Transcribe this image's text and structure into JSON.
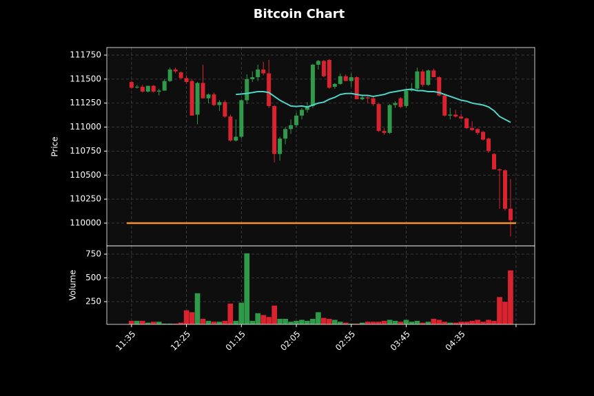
{
  "chart_data": {
    "type": "candlestick",
    "title": "Bitcoin Chart",
    "ylabel": "Price",
    "y2label": "Volume",
    "up_color": "#2e9a4a",
    "down_color": "#d9232f",
    "ma_color": "#4fd6c8",
    "hline": 110000,
    "hline_color": "#f7932e",
    "grid": true,
    "open": [
      111470,
      111420,
      111420,
      111370,
      111430,
      111370,
      111380,
      111480,
      111600,
      111570,
      111510,
      111480,
      111130,
      111460,
      111300,
      111340,
      111230,
      111260,
      111110,
      110860,
      110900,
      111280,
      111500,
      111520,
      111600,
      111560,
      111220,
      110720,
      110880,
      110980,
      111020,
      111120,
      111180,
      111220,
      111650,
      111690,
      111700,
      111420,
      111450,
      111530,
      111480,
      111520,
      111290,
      111310,
      111300,
      111240,
      110960,
      110940,
      111230,
      111300,
      111220,
      111380,
      111400,
      111580,
      111440,
      111590,
      111520,
      111330,
      111120,
      111130,
      111110,
      111090,
      110990,
      110980,
      110950,
      110880,
      110720,
      110560,
      110550,
      110150
    ],
    "high": [
      111480,
      111440,
      111440,
      111430,
      111440,
      111400,
      111500,
      111620,
      111620,
      111580,
      111540,
      111500,
      111470,
      111650,
      111350,
      111360,
      111280,
      111280,
      111130,
      111080,
      111290,
      111550,
      111580,
      111650,
      111680,
      111700,
      111230,
      110900,
      111000,
      111080,
      111150,
      111200,
      111260,
      111660,
      111700,
      111700,
      111710,
      111460,
      111560,
      111550,
      111560,
      111530,
      111340,
      111330,
      111320,
      111250,
      110990,
      111240,
      111270,
      111310,
      111400,
      111460,
      111620,
      111600,
      111600,
      111610,
      111530,
      111350,
      111200,
      111180,
      111140,
      111100,
      111060,
      110990,
      110960,
      110890,
      110730,
      110570,
      110560,
      110460
    ],
    "low": [
      111400,
      111400,
      111360,
      111360,
      111360,
      111330,
      111380,
      111470,
      111560,
      111500,
      111450,
      111120,
      111030,
      111300,
      111250,
      111220,
      111170,
      111100,
      110850,
      110850,
      110880,
      111240,
      111470,
      111480,
      111540,
      111200,
      110630,
      110650,
      110820,
      110930,
      111000,
      111080,
      111150,
      111200,
      111600,
      111520,
      111400,
      111400,
      111440,
      111480,
      111420,
      111290,
      111280,
      111250,
      111220,
      110950,
      110920,
      110930,
      111200,
      111200,
      111200,
      111370,
      111380,
      111420,
      111430,
      111520,
      111320,
      111110,
      111080,
      111100,
      111080,
      110980,
      110960,
      110920,
      110860,
      110730,
      110560,
      110150,
      110130,
      109860
    ],
    "close": [
      111410,
      111420,
      111370,
      111430,
      111370,
      111380,
      111480,
      111600,
      111580,
      111510,
      111470,
      111120,
      111460,
      111300,
      111340,
      111230,
      111260,
      111110,
      110860,
      110900,
      111280,
      111500,
      111520,
      111600,
      111560,
      111220,
      110720,
      110880,
      110980,
      111020,
      111120,
      111180,
      111220,
      111650,
      111690,
      111530,
      111410,
      111450,
      111530,
      111480,
      111520,
      111290,
      111310,
      111300,
      111240,
      110960,
      110940,
      111230,
      111250,
      111210,
      111380,
      111400,
      111580,
      111440,
      111590,
      111520,
      111330,
      111120,
      111130,
      111110,
      111090,
      110990,
      110970,
      110940,
      110870,
      110750,
      110560,
      110550,
      110150,
      110030
    ],
    "volume": [
      50,
      50,
      50,
      30,
      40,
      40,
      20,
      20,
      20,
      30,
      160,
      140,
      340,
      70,
      50,
      40,
      40,
      50,
      230,
      50,
      240,
      760,
      50,
      130,
      110,
      90,
      210,
      70,
      70,
      40,
      50,
      60,
      50,
      70,
      140,
      80,
      70,
      60,
      40,
      30,
      20,
      20,
      30,
      40,
      40,
      40,
      50,
      60,
      50,
      40,
      60,
      40,
      50,
      30,
      40,
      70,
      60,
      40,
      30,
      30,
      40,
      40,
      50,
      60,
      40,
      60,
      50,
      300,
      250,
      580
    ],
    "ma": [
      null,
      null,
      null,
      null,
      null,
      null,
      null,
      null,
      null,
      null,
      null,
      null,
      null,
      null,
      null,
      null,
      null,
      null,
      null,
      111340,
      111345,
      111350,
      111360,
      111370,
      111370,
      111360,
      111320,
      111280,
      111250,
      111220,
      111215,
      111220,
      111210,
      111230,
      111250,
      111260,
      111290,
      111310,
      111340,
      111350,
      111350,
      111340,
      111330,
      111330,
      111320,
      111330,
      111340,
      111360,
      111370,
      111380,
      111390,
      111395,
      111380,
      111380,
      111370,
      111370,
      111360,
      111340,
      111320,
      111300,
      111280,
      111270,
      111250,
      111240,
      111230,
      111210,
      111170,
      111110,
      111080,
      111050
    ],
    "xlim": [
      -4.5,
      73.4
    ],
    "xticks": [
      {
        "value": 0,
        "label": "11:35"
      },
      {
        "value": 10,
        "label": "12:25"
      },
      {
        "value": 20,
        "label": "01:15"
      },
      {
        "value": 30,
        "label": "02:05"
      },
      {
        "value": 40,
        "label": "02:55"
      },
      {
        "value": 50,
        "label": "03:45"
      },
      {
        "value": 60,
        "label": "04:35"
      },
      {
        "value": 70,
        "label": null
      }
    ],
    "ylim": [
      109763,
      111829
    ],
    "yticks": [
      110000,
      110250,
      110500,
      110750,
      111000,
      111250,
      111500,
      111750
    ],
    "y2lim": [
      11,
      837
    ],
    "y2ticks": [
      250,
      500,
      750
    ]
  }
}
